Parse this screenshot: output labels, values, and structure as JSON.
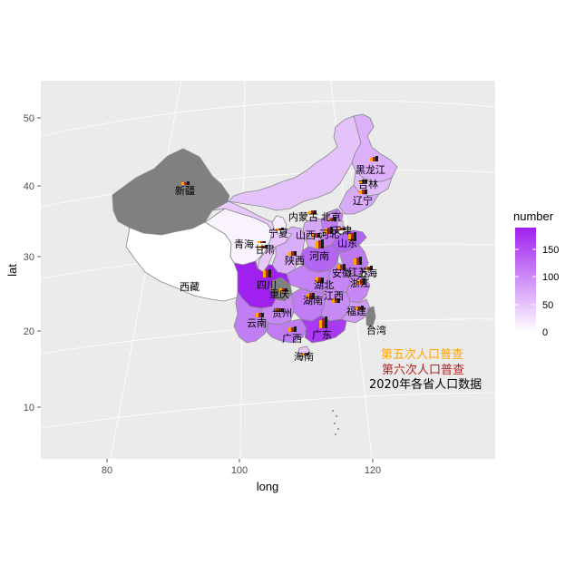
{
  "chart_data": {
    "type": "choropleth-map",
    "xlabel": "long",
    "ylabel": "lat",
    "x_ticks": [
      "80",
      "100",
      "120"
    ],
    "y_ticks": [
      "10",
      "20",
      "30",
      "40",
      "50"
    ],
    "legend": {
      "title": "number",
      "ticks": [
        "150",
        "100",
        "50",
        "0"
      ],
      "tick_values": [
        150,
        100,
        50,
        0
      ],
      "range": [
        0,
        190
      ],
      "color_low": "#ffffff",
      "color_high": "#a020f0"
    },
    "annotations": [
      {
        "text": "第五次人口普查",
        "color": "#ffa500"
      },
      {
        "text": "第六次人口普查",
        "color": "#b22222"
      },
      {
        "text": "2020年各省人口数据",
        "color": "#000000"
      }
    ],
    "regions": [
      {
        "name": "黑龙江"
      },
      {
        "name": "吉林"
      },
      {
        "name": "辽宁"
      },
      {
        "name": "内蒙古"
      },
      {
        "name": "北京"
      },
      {
        "name": "天津"
      },
      {
        "name": "河北"
      },
      {
        "name": "山西"
      },
      {
        "name": "山东"
      },
      {
        "name": "宁夏"
      },
      {
        "name": "青海"
      },
      {
        "name": "甘肃"
      },
      {
        "name": "陕西"
      },
      {
        "name": "河南"
      },
      {
        "name": "安徽"
      },
      {
        "name": "上海"
      },
      {
        "name": "江苏"
      },
      {
        "name": "浙江"
      },
      {
        "name": "湖北"
      },
      {
        "name": "四川"
      },
      {
        "name": "重庆"
      },
      {
        "name": "湖南"
      },
      {
        "name": "江西"
      },
      {
        "name": "贵州"
      },
      {
        "name": "福建"
      },
      {
        "name": "云南"
      },
      {
        "name": "广西"
      },
      {
        "name": "广东"
      },
      {
        "name": "台湾"
      },
      {
        "name": "海南"
      },
      {
        "name": "西藏"
      },
      {
        "name": "新疆"
      }
    ]
  }
}
